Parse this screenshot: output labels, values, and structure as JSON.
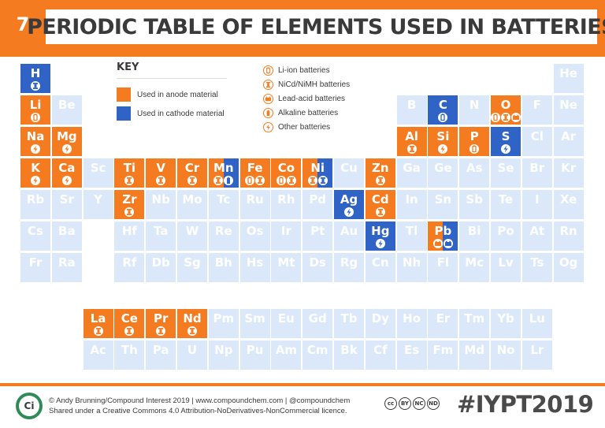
{
  "header": {
    "number": "7",
    "title": "PERIODIC TABLE OF ELEMENTS USED IN BATTERIES"
  },
  "key": {
    "title": "KEY",
    "items": [
      {
        "label": "Used in anode material",
        "color": "#f47b20"
      },
      {
        "label": "Used in cathode material",
        "color": "#2f63c6"
      }
    ]
  },
  "legend": {
    "items": [
      {
        "icon": "liion",
        "label": "Li-ion batteries"
      },
      {
        "icon": "nicd",
        "label": "NiCd/NiMH batteries"
      },
      {
        "icon": "leadacid",
        "label": "Lead-acid batteries"
      },
      {
        "icon": "alkaline",
        "label": "Alkaline batteries"
      },
      {
        "icon": "other",
        "label": "Other batteries"
      }
    ]
  },
  "colors": {
    "anode": "#f47b20",
    "cathode": "#2f63c6",
    "empty": "#dbe8f9"
  },
  "elements": [
    {
      "sym": "H",
      "col": 1,
      "row": 1,
      "use": "cathode",
      "icons": [
        "nicd"
      ]
    },
    {
      "sym": "He",
      "col": 18,
      "row": 1,
      "use": "none",
      "icons": []
    },
    {
      "sym": "Li",
      "col": 1,
      "row": 2,
      "use": "anode",
      "icons": [
        "liion"
      ]
    },
    {
      "sym": "Be",
      "col": 2,
      "row": 2,
      "use": "none",
      "icons": []
    },
    {
      "sym": "B",
      "col": 13,
      "row": 2,
      "use": "none",
      "icons": []
    },
    {
      "sym": "C",
      "col": 14,
      "row": 2,
      "use": "cathode",
      "icons": [
        "liion"
      ]
    },
    {
      "sym": "N",
      "col": 15,
      "row": 2,
      "use": "none",
      "icons": []
    },
    {
      "sym": "O",
      "col": 16,
      "row": 2,
      "use": "anode",
      "icons": [
        "liion",
        "nicd",
        "leadacid"
      ]
    },
    {
      "sym": "F",
      "col": 17,
      "row": 2,
      "use": "none",
      "icons": []
    },
    {
      "sym": "Ne",
      "col": 18,
      "row": 2,
      "use": "none",
      "icons": []
    },
    {
      "sym": "Na",
      "col": 1,
      "row": 3,
      "use": "anode",
      "icons": [
        "other"
      ]
    },
    {
      "sym": "Mg",
      "col": 2,
      "row": 3,
      "use": "anode",
      "icons": [
        "other"
      ]
    },
    {
      "sym": "Al",
      "col": 13,
      "row": 3,
      "use": "anode",
      "icons": [
        "nicd"
      ]
    },
    {
      "sym": "Si",
      "col": 14,
      "row": 3,
      "use": "anode",
      "icons": [
        "other"
      ]
    },
    {
      "sym": "P",
      "col": 15,
      "row": 3,
      "use": "anode",
      "icons": [
        "liion"
      ]
    },
    {
      "sym": "S",
      "col": 16,
      "row": 3,
      "use": "cathode",
      "icons": [
        "other"
      ]
    },
    {
      "sym": "Cl",
      "col": 17,
      "row": 3,
      "use": "none",
      "icons": []
    },
    {
      "sym": "Ar",
      "col": 18,
      "row": 3,
      "use": "none",
      "icons": []
    },
    {
      "sym": "K",
      "col": 1,
      "row": 4,
      "use": "anode",
      "icons": [
        "other"
      ]
    },
    {
      "sym": "Ca",
      "col": 2,
      "row": 4,
      "use": "anode",
      "icons": [
        "other"
      ]
    },
    {
      "sym": "Sc",
      "col": 3,
      "row": 4,
      "use": "none",
      "icons": []
    },
    {
      "sym": "Ti",
      "col": 4,
      "row": 4,
      "use": "anode",
      "icons": [
        "nicd"
      ]
    },
    {
      "sym": "V",
      "col": 5,
      "row": 4,
      "use": "anode",
      "icons": [
        "nicd"
      ]
    },
    {
      "sym": "Cr",
      "col": 6,
      "row": 4,
      "use": "anode",
      "icons": [
        "nicd"
      ]
    },
    {
      "sym": "Mn",
      "col": 7,
      "row": 4,
      "use": "split",
      "icons": [
        "nicd",
        "alkaline"
      ]
    },
    {
      "sym": "Fe",
      "col": 8,
      "row": 4,
      "use": "anode",
      "icons": [
        "liion",
        "nicd"
      ]
    },
    {
      "sym": "Co",
      "col": 9,
      "row": 4,
      "use": "anode",
      "icons": [
        "liion",
        "nicd"
      ]
    },
    {
      "sym": "Ni",
      "col": 10,
      "row": 4,
      "use": "split",
      "icons": [
        "nicd",
        "nicd"
      ]
    },
    {
      "sym": "Cu",
      "col": 11,
      "row": 4,
      "use": "none",
      "icons": []
    },
    {
      "sym": "Zn",
      "col": 12,
      "row": 4,
      "use": "anode",
      "icons": [
        "nicd"
      ]
    },
    {
      "sym": "Ga",
      "col": 13,
      "row": 4,
      "use": "none",
      "icons": []
    },
    {
      "sym": "Ge",
      "col": 14,
      "row": 4,
      "use": "none",
      "icons": []
    },
    {
      "sym": "As",
      "col": 15,
      "row": 4,
      "use": "none",
      "icons": []
    },
    {
      "sym": "Se",
      "col": 16,
      "row": 4,
      "use": "none",
      "icons": []
    },
    {
      "sym": "Br",
      "col": 17,
      "row": 4,
      "use": "none",
      "icons": []
    },
    {
      "sym": "Kr",
      "col": 18,
      "row": 4,
      "use": "none",
      "icons": []
    },
    {
      "sym": "Rb",
      "col": 1,
      "row": 5,
      "use": "none",
      "icons": []
    },
    {
      "sym": "Sr",
      "col": 2,
      "row": 5,
      "use": "none",
      "icons": []
    },
    {
      "sym": "Y",
      "col": 3,
      "row": 5,
      "use": "none",
      "icons": []
    },
    {
      "sym": "Zr",
      "col": 4,
      "row": 5,
      "use": "anode",
      "icons": [
        "nicd"
      ]
    },
    {
      "sym": "Nb",
      "col": 5,
      "row": 5,
      "use": "none",
      "icons": []
    },
    {
      "sym": "Mo",
      "col": 6,
      "row": 5,
      "use": "none",
      "icons": []
    },
    {
      "sym": "Tc",
      "col": 7,
      "row": 5,
      "use": "none",
      "icons": []
    },
    {
      "sym": "Ru",
      "col": 8,
      "row": 5,
      "use": "none",
      "icons": []
    },
    {
      "sym": "Rh",
      "col": 9,
      "row": 5,
      "use": "none",
      "icons": []
    },
    {
      "sym": "Pd",
      "col": 10,
      "row": 5,
      "use": "none",
      "icons": []
    },
    {
      "sym": "Ag",
      "col": 11,
      "row": 5,
      "use": "cathode",
      "icons": [
        "other"
      ]
    },
    {
      "sym": "Cd",
      "col": 12,
      "row": 5,
      "use": "anode",
      "icons": [
        "nicd"
      ]
    },
    {
      "sym": "In",
      "col": 13,
      "row": 5,
      "use": "none",
      "icons": []
    },
    {
      "sym": "Sn",
      "col": 14,
      "row": 5,
      "use": "none",
      "icons": []
    },
    {
      "sym": "Sb",
      "col": 15,
      "row": 5,
      "use": "none",
      "icons": []
    },
    {
      "sym": "Te",
      "col": 16,
      "row": 5,
      "use": "none",
      "icons": []
    },
    {
      "sym": "I",
      "col": 17,
      "row": 5,
      "use": "none",
      "icons": []
    },
    {
      "sym": "Xe",
      "col": 18,
      "row": 5,
      "use": "none",
      "icons": []
    },
    {
      "sym": "Cs",
      "col": 1,
      "row": 6,
      "use": "none",
      "icons": []
    },
    {
      "sym": "Ba",
      "col": 2,
      "row": 6,
      "use": "none",
      "icons": []
    },
    {
      "sym": "Hf",
      "col": 4,
      "row": 6,
      "use": "none",
      "icons": []
    },
    {
      "sym": "Ta",
      "col": 5,
      "row": 6,
      "use": "none",
      "icons": []
    },
    {
      "sym": "W",
      "col": 6,
      "row": 6,
      "use": "none",
      "icons": []
    },
    {
      "sym": "Re",
      "col": 7,
      "row": 6,
      "use": "none",
      "icons": []
    },
    {
      "sym": "Os",
      "col": 8,
      "row": 6,
      "use": "none",
      "icons": []
    },
    {
      "sym": "Ir",
      "col": 9,
      "row": 6,
      "use": "none",
      "icons": []
    },
    {
      "sym": "Pt",
      "col": 10,
      "row": 6,
      "use": "none",
      "icons": []
    },
    {
      "sym": "Au",
      "col": 11,
      "row": 6,
      "use": "none",
      "icons": []
    },
    {
      "sym": "Hg",
      "col": 12,
      "row": 6,
      "use": "cathode",
      "icons": [
        "other"
      ]
    },
    {
      "sym": "Tl",
      "col": 13,
      "row": 6,
      "use": "none",
      "icons": []
    },
    {
      "sym": "Pb",
      "col": 14,
      "row": 6,
      "use": "split",
      "icons": [
        "leadacid",
        "leadacid"
      ]
    },
    {
      "sym": "Bi",
      "col": 15,
      "row": 6,
      "use": "none",
      "icons": []
    },
    {
      "sym": "Po",
      "col": 16,
      "row": 6,
      "use": "none",
      "icons": []
    },
    {
      "sym": "At",
      "col": 17,
      "row": 6,
      "use": "none",
      "icons": []
    },
    {
      "sym": "Rn",
      "col": 18,
      "row": 6,
      "use": "none",
      "icons": []
    },
    {
      "sym": "Fr",
      "col": 1,
      "row": 7,
      "use": "none",
      "icons": []
    },
    {
      "sym": "Ra",
      "col": 2,
      "row": 7,
      "use": "none",
      "icons": []
    },
    {
      "sym": "Rf",
      "col": 4,
      "row": 7,
      "use": "none",
      "icons": []
    },
    {
      "sym": "Db",
      "col": 5,
      "row": 7,
      "use": "none",
      "icons": []
    },
    {
      "sym": "Sg",
      "col": 6,
      "row": 7,
      "use": "none",
      "icons": []
    },
    {
      "sym": "Bh",
      "col": 7,
      "row": 7,
      "use": "none",
      "icons": []
    },
    {
      "sym": "Hs",
      "col": 8,
      "row": 7,
      "use": "none",
      "icons": []
    },
    {
      "sym": "Mt",
      "col": 9,
      "row": 7,
      "use": "none",
      "icons": []
    },
    {
      "sym": "Ds",
      "col": 10,
      "row": 7,
      "use": "none",
      "icons": []
    },
    {
      "sym": "Rg",
      "col": 11,
      "row": 7,
      "use": "none",
      "icons": []
    },
    {
      "sym": "Cn",
      "col": 12,
      "row": 7,
      "use": "none",
      "icons": []
    },
    {
      "sym": "Nh",
      "col": 13,
      "row": 7,
      "use": "none",
      "icons": []
    },
    {
      "sym": "Fl",
      "col": 14,
      "row": 7,
      "use": "none",
      "icons": []
    },
    {
      "sym": "Mc",
      "col": 15,
      "row": 7,
      "use": "none",
      "icons": []
    },
    {
      "sym": "Lv",
      "col": 16,
      "row": 7,
      "use": "none",
      "icons": []
    },
    {
      "sym": "Ts",
      "col": 17,
      "row": 7,
      "use": "none",
      "icons": []
    },
    {
      "sym": "Og",
      "col": 18,
      "row": 7,
      "use": "none",
      "icons": []
    },
    {
      "sym": "La",
      "col": 3,
      "row": 9,
      "use": "anode",
      "icons": [
        "nicd"
      ]
    },
    {
      "sym": "Ce",
      "col": 4,
      "row": 9,
      "use": "anode",
      "icons": [
        "nicd"
      ]
    },
    {
      "sym": "Pr",
      "col": 5,
      "row": 9,
      "use": "anode",
      "icons": [
        "nicd"
      ]
    },
    {
      "sym": "Nd",
      "col": 6,
      "row": 9,
      "use": "anode",
      "icons": [
        "nicd"
      ]
    },
    {
      "sym": "Pm",
      "col": 7,
      "row": 9,
      "use": "none",
      "icons": []
    },
    {
      "sym": "Sm",
      "col": 8,
      "row": 9,
      "use": "none",
      "icons": []
    },
    {
      "sym": "Eu",
      "col": 9,
      "row": 9,
      "use": "none",
      "icons": []
    },
    {
      "sym": "Gd",
      "col": 10,
      "row": 9,
      "use": "none",
      "icons": []
    },
    {
      "sym": "Tb",
      "col": 11,
      "row": 9,
      "use": "none",
      "icons": []
    },
    {
      "sym": "Dy",
      "col": 12,
      "row": 9,
      "use": "none",
      "icons": []
    },
    {
      "sym": "Ho",
      "col": 13,
      "row": 9,
      "use": "none",
      "icons": []
    },
    {
      "sym": "Er",
      "col": 14,
      "row": 9,
      "use": "none",
      "icons": []
    },
    {
      "sym": "Tm",
      "col": 15,
      "row": 9,
      "use": "none",
      "icons": []
    },
    {
      "sym": "Yb",
      "col": 16,
      "row": 9,
      "use": "none",
      "icons": []
    },
    {
      "sym": "Lu",
      "col": 17,
      "row": 9,
      "use": "none",
      "icons": []
    },
    {
      "sym": "Ac",
      "col": 3,
      "row": 10,
      "use": "none",
      "icons": []
    },
    {
      "sym": "Th",
      "col": 4,
      "row": 10,
      "use": "none",
      "icons": []
    },
    {
      "sym": "Pa",
      "col": 5,
      "row": 10,
      "use": "none",
      "icons": []
    },
    {
      "sym": "U",
      "col": 6,
      "row": 10,
      "use": "none",
      "icons": []
    },
    {
      "sym": "Np",
      "col": 7,
      "row": 10,
      "use": "none",
      "icons": []
    },
    {
      "sym": "Pu",
      "col": 8,
      "row": 10,
      "use": "none",
      "icons": []
    },
    {
      "sym": "Am",
      "col": 9,
      "row": 10,
      "use": "none",
      "icons": []
    },
    {
      "sym": "Cm",
      "col": 10,
      "row": 10,
      "use": "none",
      "icons": []
    },
    {
      "sym": "Bk",
      "col": 11,
      "row": 10,
      "use": "none",
      "icons": []
    },
    {
      "sym": "Cf",
      "col": 12,
      "row": 10,
      "use": "none",
      "icons": []
    },
    {
      "sym": "Es",
      "col": 13,
      "row": 10,
      "use": "none",
      "icons": []
    },
    {
      "sym": "Fm",
      "col": 14,
      "row": 10,
      "use": "none",
      "icons": []
    },
    {
      "sym": "Md",
      "col": 15,
      "row": 10,
      "use": "none",
      "icons": []
    },
    {
      "sym": "No",
      "col": 16,
      "row": 10,
      "use": "none",
      "icons": []
    },
    {
      "sym": "Lr",
      "col": 17,
      "row": 10,
      "use": "none",
      "icons": []
    }
  ],
  "footer": {
    "logo_text": "Ci",
    "credit_line1": "© Andy Brunning/Compound Interest 2019 | www.compoundchem.com | @compoundchem",
    "credit_line2": "Shared under a Creative Commons 4.0 Attribution-NoDerivatives-NonCommercial licence.",
    "cc_badges": [
      "cc",
      "BY",
      "NC",
      "ND"
    ],
    "hashtag": "#IYPT2019"
  }
}
